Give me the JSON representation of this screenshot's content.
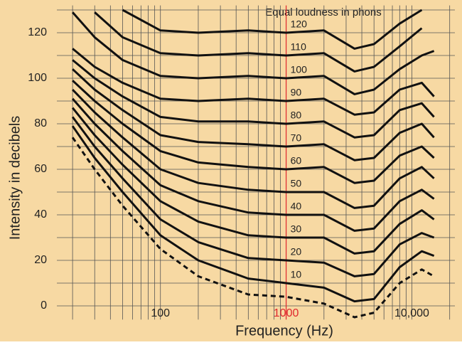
{
  "chart_data": {
    "type": "line",
    "title": "Equal loudness in phons",
    "x_label": "Frequency (Hz)",
    "y_label": "Intensity in decibels",
    "log_x": true,
    "grid": true,
    "xlim": [
      15,
      22000
    ],
    "ylim": [
      -6,
      132
    ],
    "xticks": [
      100,
      1000,
      {
        "value": 10000,
        "label": "10,000"
      }
    ],
    "xminor": [
      20,
      30,
      40,
      50,
      60,
      70,
      80,
      90,
      200,
      300,
      400,
      500,
      600,
      700,
      800,
      900,
      2000,
      3000,
      4000,
      5000,
      6000,
      7000,
      8000,
      9000,
      20000
    ],
    "yticks": [
      0,
      20,
      40,
      60,
      80,
      100,
      120
    ],
    "yminor": [
      10,
      30,
      50,
      70,
      90,
      110,
      130
    ],
    "highlight_x": 1000,
    "highlight_color": "#e0282e",
    "background": "#f7d9a3",
    "x": [
      20,
      30,
      50,
      100,
      200,
      500,
      1000,
      2000,
      3500,
      5000,
      8000,
      12000,
      15000
    ],
    "series": [
      {
        "color": "#111111",
        "dashed": true,
        "values": [
          74,
          60,
          44,
          25,
          13,
          5,
          4,
          1,
          -5,
          -3,
          10,
          16,
          13
        ]
      },
      {
        "name": "10",
        "color": "#111111",
        "values": [
          79,
          65,
          50,
          31,
          20,
          12,
          10,
          8,
          2,
          3,
          17,
          24,
          22
        ]
      },
      {
        "name": "20",
        "color": "#111111",
        "values": [
          83,
          70,
          56,
          38,
          28,
          21,
          20,
          19,
          13,
          14,
          27,
          32,
          30
        ]
      },
      {
        "name": "30",
        "color": "#111111",
        "values": [
          87,
          75,
          62,
          46,
          37,
          31,
          30,
          30,
          23,
          24,
          36,
          42,
          38
        ]
      },
      {
        "name": "40",
        "color": "#111111",
        "values": [
          91,
          80,
          68,
          53,
          46,
          41,
          40,
          40,
          33,
          34,
          46,
          51,
          47
        ]
      },
      {
        "name": "50",
        "color": "#111111",
        "values": [
          95,
          85,
          74,
          60,
          54,
          51,
          50,
          50,
          43,
          44,
          56,
          61,
          56
        ]
      },
      {
        "name": "60",
        "color": "#111111",
        "values": [
          99,
          90,
          80,
          68,
          63,
          61,
          60,
          61,
          54,
          55,
          66,
          70,
          65
        ]
      },
      {
        "name": "70",
        "color": "#111111",
        "values": [
          104,
          95,
          86,
          75,
          72,
          71,
          70,
          71,
          64,
          65,
          76,
          80,
          74
        ]
      },
      {
        "name": "80",
        "color": "#111111",
        "values": [
          108,
          100,
          92,
          83,
          81,
          81,
          80,
          81,
          74,
          75,
          86,
          89,
          83
        ]
      },
      {
        "name": "90",
        "color": "#111111",
        "values": [
          113,
          105,
          98,
          91,
          90,
          91,
          90,
          91,
          84,
          85,
          95,
          98,
          92
        ]
      },
      {
        "name": "100",
        "color": "#111111",
        "values": [
          129,
          118,
          108,
          101,
          100,
          101,
          100,
          101,
          93,
          95,
          104,
          110,
          112
        ]
      },
      {
        "name": "110",
        "color": "#111111",
        "values": [
          null,
          129,
          118,
          111,
          110,
          111,
          110,
          111,
          103,
          105,
          114,
          122,
          null
        ]
      },
      {
        "name": "120",
        "color": "#111111",
        "values": [
          null,
          null,
          130,
          121,
          120,
          121,
          120,
          121,
          113,
          115,
          124,
          130,
          null
        ]
      }
    ]
  }
}
